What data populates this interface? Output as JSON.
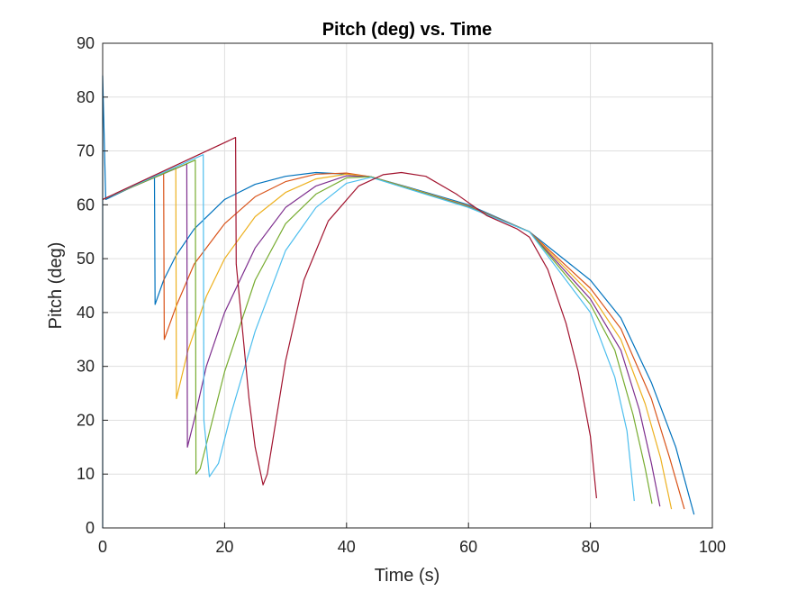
{
  "chart_data": {
    "type": "line",
    "title": "Pitch (deg) vs. Time",
    "xlabel": "Time (s)",
    "ylabel": "Pitch (deg)",
    "xlim": [
      0,
      100
    ],
    "ylim": [
      0,
      90
    ],
    "xticks": [
      "0",
      "20",
      "40",
      "60",
      "80",
      "100"
    ],
    "yticks": [
      "0",
      "10",
      "20",
      "30",
      "40",
      "50",
      "60",
      "70",
      "80",
      "90"
    ],
    "grid": true,
    "legend": "none",
    "series": [
      {
        "color": "#0072BD",
        "points": [
          [
            0,
            0
          ],
          [
            0,
            84
          ],
          [
            0.5,
            61
          ],
          [
            8.5,
            65.3
          ],
          [
            8.6,
            41.5
          ],
          [
            10,
            46
          ],
          [
            12,
            50.5
          ],
          [
            15,
            55.5
          ],
          [
            20,
            61
          ],
          [
            25,
            63.8
          ],
          [
            30,
            65.3
          ],
          [
            35,
            66
          ],
          [
            40,
            65.7
          ],
          [
            44,
            65.2
          ],
          [
            50,
            63.3
          ],
          [
            60,
            60
          ],
          [
            70,
            55
          ],
          [
            80,
            46
          ],
          [
            85,
            39
          ],
          [
            90,
            27
          ],
          [
            94,
            15
          ],
          [
            97,
            2.5
          ]
        ]
      },
      {
        "color": "#D95319",
        "points": [
          [
            0,
            61
          ],
          [
            10,
            65.8
          ],
          [
            10.1,
            35
          ],
          [
            12,
            41
          ],
          [
            15,
            49
          ],
          [
            20,
            56.5
          ],
          [
            25,
            61.5
          ],
          [
            30,
            64.3
          ],
          [
            35,
            65.7
          ],
          [
            40,
            65.9
          ],
          [
            44,
            65.2
          ],
          [
            50,
            63.2
          ],
          [
            60,
            59.8
          ],
          [
            70,
            55
          ],
          [
            80,
            44.5
          ],
          [
            85,
            37
          ],
          [
            90,
            24
          ],
          [
            93,
            13
          ],
          [
            95.4,
            3.5
          ]
        ]
      },
      {
        "color": "#EDB120",
        "points": [
          [
            0,
            61
          ],
          [
            12,
            66.8
          ],
          [
            12.1,
            24
          ],
          [
            14,
            33
          ],
          [
            17,
            43
          ],
          [
            20,
            50
          ],
          [
            25,
            57.8
          ],
          [
            30,
            62.3
          ],
          [
            35,
            64.8
          ],
          [
            40,
            65.7
          ],
          [
            44,
            65.2
          ],
          [
            50,
            63.2
          ],
          [
            60,
            59.8
          ],
          [
            70,
            55
          ],
          [
            80,
            43.5
          ],
          [
            85,
            35
          ],
          [
            89,
            23
          ],
          [
            91.5,
            13
          ],
          [
            93.3,
            3.5
          ]
        ]
      },
      {
        "color": "#7E2F8E",
        "points": [
          [
            0,
            61
          ],
          [
            13.8,
            67.6
          ],
          [
            13.9,
            15
          ],
          [
            15,
            20
          ],
          [
            17,
            30
          ],
          [
            20,
            40
          ],
          [
            25,
            52
          ],
          [
            30,
            59.5
          ],
          [
            35,
            63.5
          ],
          [
            40,
            65.4
          ],
          [
            44,
            65.2
          ],
          [
            50,
            63.1
          ],
          [
            60,
            59.7
          ],
          [
            70,
            55
          ],
          [
            80,
            42.5
          ],
          [
            85,
            33
          ],
          [
            88,
            22
          ],
          [
            90,
            12
          ],
          [
            91.4,
            4
          ]
        ]
      },
      {
        "color": "#77AC30",
        "points": [
          [
            0,
            61
          ],
          [
            15.2,
            68.3
          ],
          [
            15.3,
            10
          ],
          [
            16,
            11
          ],
          [
            18,
            20
          ],
          [
            20,
            29
          ],
          [
            25,
            46
          ],
          [
            30,
            56.5
          ],
          [
            35,
            62
          ],
          [
            40,
            65
          ],
          [
            44,
            65.2
          ],
          [
            50,
            63.1
          ],
          [
            60,
            59.6
          ],
          [
            70,
            55
          ],
          [
            80,
            41.5
          ],
          [
            84,
            33
          ],
          [
            87,
            21
          ],
          [
            89,
            11
          ],
          [
            90.1,
            4.5
          ]
        ]
      },
      {
        "color": "#4DBEEE",
        "points": [
          [
            0,
            61
          ],
          [
            16.5,
            69.3
          ],
          [
            16.6,
            20
          ],
          [
            17.5,
            9.5
          ],
          [
            19,
            12
          ],
          [
            21,
            21
          ],
          [
            25,
            36.5
          ],
          [
            30,
            51.5
          ],
          [
            35,
            59.5
          ],
          [
            40,
            64
          ],
          [
            44,
            65.1
          ],
          [
            50,
            63
          ],
          [
            60,
            59.5
          ],
          [
            70,
            55
          ],
          [
            80,
            40
          ],
          [
            84,
            28
          ],
          [
            86,
            18
          ],
          [
            87.2,
            5
          ]
        ]
      },
      {
        "color": "#A2142F",
        "points": [
          [
            0,
            61
          ],
          [
            21.8,
            72.5
          ],
          [
            21.9,
            49
          ],
          [
            23,
            36
          ],
          [
            24,
            24
          ],
          [
            25,
            15
          ],
          [
            26.3,
            8
          ],
          [
            27,
            10
          ],
          [
            28,
            17
          ],
          [
            30,
            31
          ],
          [
            33,
            46
          ],
          [
            37,
            57
          ],
          [
            42,
            63.5
          ],
          [
            46,
            65.6
          ],
          [
            49,
            66
          ],
          [
            53,
            65.3
          ],
          [
            58,
            62
          ],
          [
            63,
            58
          ],
          [
            68,
            55.5
          ],
          [
            70,
            54
          ],
          [
            73,
            48
          ],
          [
            76,
            38
          ],
          [
            78,
            29
          ],
          [
            80,
            17
          ],
          [
            81,
            5.5
          ]
        ]
      }
    ]
  }
}
